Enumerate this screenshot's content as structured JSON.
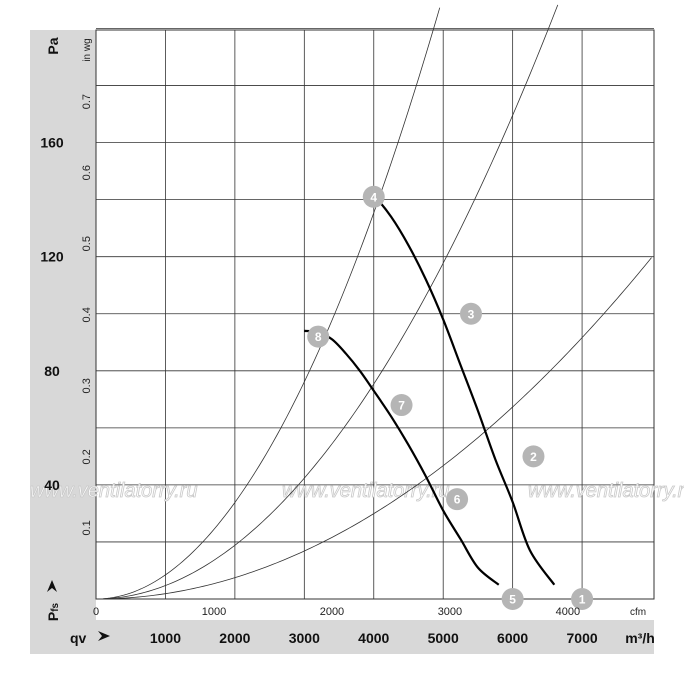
{
  "chart_data": {
    "type": "line",
    "title": "",
    "x_primary": {
      "unit": "m³/h",
      "label": "qv",
      "ticks": [
        "1000",
        "2000",
        "3000",
        "4000",
        "5000",
        "6000",
        "7000"
      ],
      "range": [
        0,
        7800
      ]
    },
    "x_secondary": {
      "unit": "cfm",
      "ticks": [
        "0",
        "1000",
        "2000",
        "3000",
        "4000"
      ]
    },
    "y_primary": {
      "unit": "Pa",
      "label": "Pfs",
      "ticks": [
        "40",
        "80",
        "120",
        "160"
      ],
      "range": [
        0,
        200
      ]
    },
    "y_secondary": {
      "unit": "in wg",
      "ticks": [
        "0.1",
        "0.2",
        "0.3",
        "0.4",
        "0.5",
        "0.6",
        "0.7"
      ]
    },
    "grid": true,
    "series": [
      {
        "kind": "fan-curve",
        "points": [
          [
            3900,
            143
          ],
          [
            4000,
            141.5
          ],
          [
            4250,
            134
          ],
          [
            4500,
            124
          ],
          [
            4750,
            112
          ],
          [
            5000,
            98
          ],
          [
            5250,
            82
          ],
          [
            5500,
            66
          ],
          [
            5750,
            49
          ],
          [
            6000,
            34
          ],
          [
            6250,
            17
          ],
          [
            6600,
            5
          ]
        ]
      },
      {
        "kind": "fan-curve",
        "points": [
          [
            3000,
            94
          ],
          [
            3200,
            93.5
          ],
          [
            3400,
            91
          ],
          [
            3600,
            86
          ],
          [
            3800,
            80
          ],
          [
            4000,
            73
          ],
          [
            4250,
            64
          ],
          [
            4500,
            54
          ],
          [
            4750,
            43
          ],
          [
            5000,
            31
          ],
          [
            5250,
            21
          ],
          [
            5500,
            11
          ],
          [
            5800,
            5
          ]
        ]
      }
    ],
    "system_curves": [
      {
        "k_per_1000": 8.46
      },
      {
        "k_per_1000": 4.71
      },
      {
        "k_per_1000": 1.87
      }
    ],
    "operating_points": [
      {
        "label": "1",
        "x": 7000,
        "y": 0
      },
      {
        "label": "2",
        "x": 6300,
        "y": 50
      },
      {
        "label": "3",
        "x": 5400,
        "y": 100
      },
      {
        "label": "4",
        "x": 4000,
        "y": 141
      },
      {
        "label": "5",
        "x": 6000,
        "y": 0
      },
      {
        "label": "6",
        "x": 5200,
        "y": 35
      },
      {
        "label": "7",
        "x": 4400,
        "y": 68
      },
      {
        "label": "8",
        "x": 3200,
        "y": 92
      }
    ],
    "watermark": "www.ventilatorry.ru"
  }
}
